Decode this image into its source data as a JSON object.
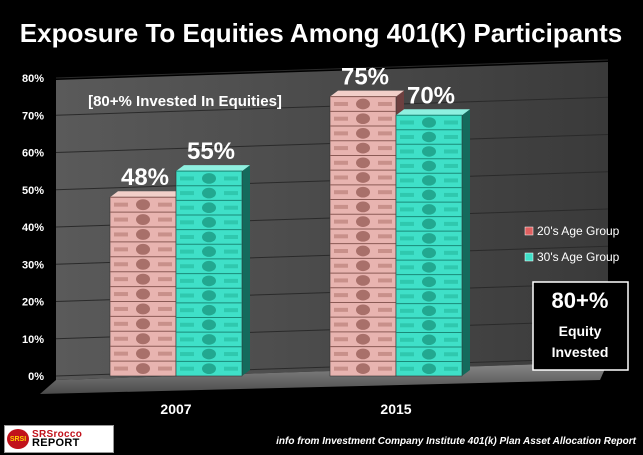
{
  "chart_data": {
    "type": "bar",
    "title": "Exposure To Equities Among 401(K) Participants",
    "categories": [
      "2007",
      "2015"
    ],
    "series": [
      {
        "name": "20's Age Group",
        "values": [
          48,
          75
        ],
        "color": "#e8b4b0"
      },
      {
        "name": "30's Age Group",
        "values": [
          55,
          70
        ],
        "color": "#3fe0c8"
      }
    ],
    "data_labels": {
      "2007": [
        "48%",
        "55%"
      ],
      "2015": [
        "75%",
        "70%"
      ]
    },
    "ylim": [
      0,
      80
    ],
    "yticks": [
      "0%",
      "10%",
      "20%",
      "30%",
      "40%",
      "50%",
      "60%",
      "70%",
      "80%"
    ],
    "grid": true,
    "legend_position": "right",
    "annotation": "[80+% Invested In Equities]",
    "callout": {
      "line1": "80+%",
      "line2": "Equity",
      "line3": "Invested"
    },
    "source": "info from Investment Company Institute 401(k) Plan Asset Allocation Report"
  },
  "logo": {
    "badge": "SRSI",
    "line1": "SRSrocco",
    "line2": "REPORT"
  }
}
